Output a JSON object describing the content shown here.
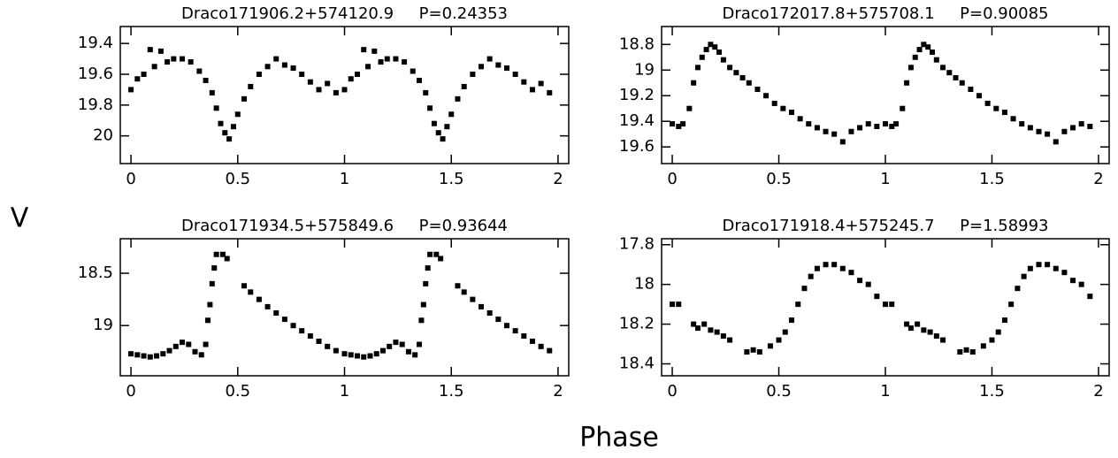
{
  "xlabel": "Phase",
  "ylabel": "V",
  "chart_data": [
    {
      "type": "scatter",
      "title": "Draco171906.2+574120.9     P=0.24353",
      "color": "#000000",
      "xlim": [
        -0.05,
        2.05
      ],
      "ylim": [
        20.18,
        19.29
      ],
      "xticks": [
        0,
        0.5,
        1,
        1.5,
        2
      ],
      "yticks": [
        19.4,
        19.6,
        19.8,
        20
      ],
      "x": [
        0,
        0.03,
        0.06,
        0.09,
        0.11,
        0.14,
        0.17,
        0.2,
        0.24,
        0.28,
        0.32,
        0.35,
        0.38,
        0.4,
        0.42,
        0.44,
        0.46,
        0.48,
        0.5,
        0.53,
        0.56,
        0.6,
        0.64,
        0.68,
        0.72,
        0.76,
        0.8,
        0.84,
        0.88,
        0.92,
        0.96,
        1,
        1.03,
        1.06,
        1.09,
        1.11,
        1.14,
        1.17,
        1.2,
        1.24,
        1.28,
        1.32,
        1.35,
        1.38,
        1.4,
        1.42,
        1.44,
        1.46,
        1.48,
        1.5,
        1.53,
        1.56,
        1.6,
        1.64,
        1.68,
        1.72,
        1.76,
        1.8,
        1.84,
        1.88,
        1.92,
        1.96
      ],
      "values": [
        19.7,
        19.63,
        19.6,
        19.44,
        19.55,
        19.45,
        19.52,
        19.5,
        19.5,
        19.52,
        19.58,
        19.64,
        19.72,
        19.82,
        19.92,
        19.98,
        20.02,
        19.94,
        19.86,
        19.76,
        19.68,
        19.6,
        19.55,
        19.5,
        19.54,
        19.56,
        19.6,
        19.65,
        19.7,
        19.66,
        19.72,
        19.7,
        19.63,
        19.6,
        19.44,
        19.55,
        19.45,
        19.52,
        19.5,
        19.5,
        19.52,
        19.58,
        19.64,
        19.72,
        19.82,
        19.92,
        19.98,
        20.02,
        19.94,
        19.86,
        19.76,
        19.68,
        19.6,
        19.55,
        19.5,
        19.54,
        19.56,
        19.6,
        19.65,
        19.7,
        19.66,
        19.72
      ]
    },
    {
      "type": "scatter",
      "title": "Draco172017.8+575708.1     P=0.90085",
      "color": "#000000",
      "xlim": [
        -0.05,
        2.05
      ],
      "ylim": [
        19.73,
        18.66
      ],
      "xticks": [
        0,
        0.5,
        1,
        1.5,
        2
      ],
      "yticks": [
        18.8,
        19,
        19.2,
        19.4,
        19.6
      ],
      "x": [
        0,
        0.03,
        0.05,
        0.08,
        0.1,
        0.12,
        0.14,
        0.16,
        0.18,
        0.2,
        0.22,
        0.24,
        0.27,
        0.3,
        0.33,
        0.36,
        0.4,
        0.44,
        0.48,
        0.52,
        0.56,
        0.6,
        0.64,
        0.68,
        0.72,
        0.76,
        0.8,
        0.84,
        0.88,
        0.92,
        0.96,
        1,
        1.03,
        1.05,
        1.08,
        1.1,
        1.12,
        1.14,
        1.16,
        1.18,
        1.2,
        1.22,
        1.24,
        1.27,
        1.3,
        1.33,
        1.36,
        1.4,
        1.44,
        1.48,
        1.52,
        1.56,
        1.6,
        1.64,
        1.68,
        1.72,
        1.76,
        1.8,
        1.84,
        1.88,
        1.92,
        1.96
      ],
      "values": [
        19.42,
        19.44,
        19.42,
        19.3,
        19.1,
        18.98,
        18.9,
        18.84,
        18.8,
        18.82,
        18.86,
        18.92,
        18.98,
        19.02,
        19.06,
        19.1,
        19.15,
        19.2,
        19.26,
        19.3,
        19.33,
        19.38,
        19.42,
        19.45,
        19.48,
        19.5,
        19.56,
        19.48,
        19.45,
        19.42,
        19.44,
        19.42,
        19.44,
        19.42,
        19.3,
        19.1,
        18.98,
        18.9,
        18.84,
        18.8,
        18.82,
        18.86,
        18.92,
        18.98,
        19.02,
        19.06,
        19.1,
        19.15,
        19.2,
        19.26,
        19.3,
        19.33,
        19.38,
        19.42,
        19.45,
        19.48,
        19.5,
        19.56,
        19.48,
        19.45,
        19.42,
        19.44
      ]
    },
    {
      "type": "scatter",
      "title": "Draco171934.5+575849.6     P=0.93644",
      "color": "#000000",
      "xlim": [
        -0.05,
        2.05
      ],
      "ylim": [
        19.48,
        18.17
      ],
      "xticks": [
        0,
        0.5,
        1,
        1.5,
        2
      ],
      "yticks": [
        18.5,
        19
      ],
      "x": [
        0,
        0.03,
        0.06,
        0.09,
        0.12,
        0.15,
        0.18,
        0.21,
        0.24,
        0.27,
        0.3,
        0.33,
        0.35,
        0.36,
        0.37,
        0.38,
        0.39,
        0.4,
        0.43,
        0.45,
        0.53,
        0.56,
        0.6,
        0.64,
        0.68,
        0.72,
        0.76,
        0.8,
        0.84,
        0.88,
        0.92,
        0.96,
        1,
        1.03,
        1.06,
        1.09,
        1.12,
        1.15,
        1.18,
        1.21,
        1.24,
        1.27,
        1.3,
        1.33,
        1.35,
        1.36,
        1.37,
        1.38,
        1.39,
        1.4,
        1.43,
        1.45,
        1.53,
        1.56,
        1.6,
        1.64,
        1.68,
        1.72,
        1.76,
        1.8,
        1.84,
        1.88,
        1.92,
        1.96
      ],
      "values": [
        19.27,
        19.28,
        19.29,
        19.3,
        19.29,
        19.27,
        19.24,
        19.2,
        19.16,
        19.18,
        19.25,
        19.28,
        19.18,
        18.95,
        18.8,
        18.6,
        18.45,
        18.32,
        18.32,
        18.36,
        18.62,
        18.68,
        18.75,
        18.82,
        18.88,
        18.94,
        19.0,
        19.05,
        19.1,
        19.15,
        19.2,
        19.24,
        19.27,
        19.28,
        19.29,
        19.3,
        19.29,
        19.27,
        19.24,
        19.2,
        19.16,
        19.18,
        19.25,
        19.28,
        19.18,
        18.95,
        18.8,
        18.6,
        18.45,
        18.32,
        18.32,
        18.36,
        18.62,
        18.68,
        18.75,
        18.82,
        18.88,
        18.94,
        19.0,
        19.05,
        19.1,
        19.15,
        19.2,
        19.24
      ]
    },
    {
      "type": "scatter",
      "title": "Draco171918.4+575245.7     P=1.58993",
      "color": "#000000",
      "xlim": [
        -0.05,
        2.05
      ],
      "ylim": [
        18.46,
        17.77
      ],
      "xticks": [
        0,
        0.5,
        1,
        1.5,
        2
      ],
      "yticks": [
        17.8,
        18,
        18.2,
        18.4
      ],
      "x": [
        0,
        0.03,
        0.1,
        0.12,
        0.15,
        0.18,
        0.21,
        0.24,
        0.27,
        0.35,
        0.38,
        0.41,
        0.46,
        0.5,
        0.53,
        0.56,
        0.59,
        0.62,
        0.65,
        0.68,
        0.72,
        0.76,
        0.8,
        0.84,
        0.88,
        0.92,
        0.96,
        1,
        1.03,
        1.1,
        1.12,
        1.15,
        1.18,
        1.21,
        1.24,
        1.27,
        1.35,
        1.38,
        1.41,
        1.46,
        1.5,
        1.53,
        1.56,
        1.59,
        1.62,
        1.65,
        1.68,
        1.72,
        1.76,
        1.8,
        1.84,
        1.88,
        1.92,
        1.96
      ],
      "values": [
        18.1,
        18.1,
        18.2,
        18.22,
        18.2,
        18.23,
        18.24,
        18.26,
        18.28,
        18.34,
        18.33,
        18.34,
        18.31,
        18.28,
        18.24,
        18.18,
        18.1,
        18.02,
        17.96,
        17.92,
        17.9,
        17.9,
        17.92,
        17.94,
        17.98,
        18.0,
        18.06,
        18.1,
        18.1,
        18.2,
        18.22,
        18.2,
        18.23,
        18.24,
        18.26,
        18.28,
        18.34,
        18.33,
        18.34,
        18.31,
        18.28,
        18.24,
        18.18,
        18.1,
        18.02,
        17.96,
        17.92,
        17.9,
        17.9,
        17.92,
        17.94,
        17.98,
        18.0,
        18.06
      ]
    }
  ]
}
